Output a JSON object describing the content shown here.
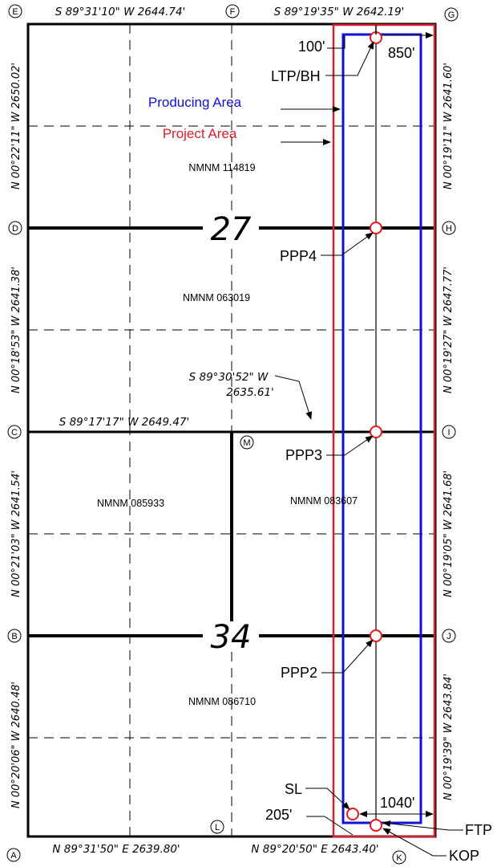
{
  "bearings": {
    "top_west": "S 89°31'10\" W 2644.74'",
    "top_east": "S 89°19'35\" W 2642.19'",
    "mid_west": "S 89°17'17\" W 2649.47'",
    "mid_east_line1": "S 89°30'52\" W",
    "mid_east_line2": "2635.61'",
    "bottom_west": "N 89°31'50\" E 2639.80'",
    "bottom_east": "N 89°20'50\" E 2643.40'",
    "left_1": "N 00°22'11\" W 2650.02'",
    "left_2": "N 00°18'53\" W 2641.38'",
    "left_3": "N 00°21'03\" W 2641.54'",
    "left_4": "N 00°20'06\" W 2640.48'",
    "right_1": "N 00°19'11\" W 2641.60'",
    "right_2": "N 00°19'27\" W 2647.77'",
    "right_3": "N 00°19'05\" W 2641.68'",
    "right_4": "N 00°19'39\" W 2643.84'"
  },
  "corners": {
    "A": "A",
    "B": "B",
    "C": "C",
    "D": "D",
    "E": "E",
    "F": "F",
    "G": "G",
    "H": "H",
    "I": "I",
    "J": "J",
    "K": "K",
    "L": "L",
    "M": "M"
  },
  "sections": {
    "upper": "27",
    "lower": "34"
  },
  "legend": {
    "producing_area": "Producing Area",
    "project_area": "Project Area",
    "producing_color": "#1010d8",
    "project_color": "#d8202c"
  },
  "leases": {
    "nw": "NMNM 114819",
    "w2": "NMNM 063019",
    "sw_left": "NMNM 085933",
    "sw_right": "NMNM 083607",
    "bottom": "NMNM 086710"
  },
  "points": {
    "ltp": "LTP/BH",
    "ppp4": "PPP4",
    "ppp3": "PPP3",
    "ppp2": "PPP2",
    "sl": "SL",
    "ftp": "FTP",
    "kop": "KOP"
  },
  "dimensions": {
    "d100": "100'",
    "d850": "850'",
    "d1040": "1040'",
    "d205": "205'"
  }
}
